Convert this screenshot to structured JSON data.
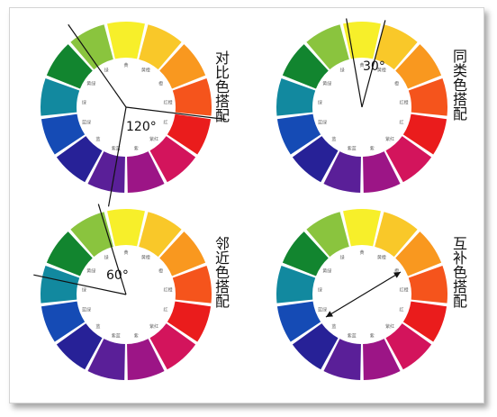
{
  "wheel": {
    "colors": [
      "#f7ef2a",
      "#f9c829",
      "#f9981f",
      "#f5541c",
      "#ea1c1c",
      "#d3145c",
      "#9c1586",
      "#5a1f98",
      "#272197",
      "#154bb5",
      "#12899f",
      "#12852f",
      "#8ac43e"
    ],
    "inner_labels": [
      "黄",
      "黄橙",
      "橙",
      "红橙",
      "红",
      "紫红",
      "紫",
      "紫蓝",
      "蓝",
      "蓝绿",
      "绿",
      "黄绿",
      "绿"
    ]
  },
  "panels": [
    {
      "name": "contrast",
      "label": "对比色搭配",
      "angle_label": "120°",
      "lines": [
        {
          "angle": -125,
          "length": 112
        },
        {
          "angle": 7,
          "length": 112
        },
        {
          "angle": 100,
          "length": 112
        }
      ]
    },
    {
      "name": "analogous",
      "label": "同类色搭配",
      "angle_label": "30°",
      "lines": [
        {
          "angle": -100,
          "length": 100
        },
        {
          "angle": -75,
          "length": 100
        }
      ]
    },
    {
      "name": "adjacent",
      "label": "邻近色搭配",
      "angle_label": "60°",
      "lines": [
        {
          "angle": -107,
          "length": 105
        },
        {
          "angle": -168,
          "length": 105
        }
      ]
    },
    {
      "name": "complementary",
      "label": "互补色搭配",
      "angle_label": "",
      "lines": []
    }
  ]
}
